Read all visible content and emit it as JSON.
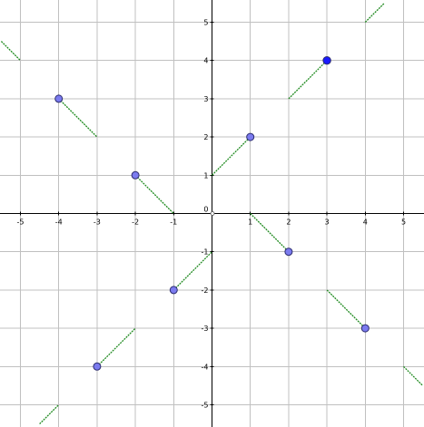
{
  "chart_data": {
    "type": "line",
    "title": "",
    "xlabel": "",
    "ylabel": "",
    "xlim": [
      -5.5,
      5.5
    ],
    "ylim": [
      -5.5,
      5.5
    ],
    "grid": true,
    "x_ticks": [
      -5,
      -4,
      -3,
      -2,
      -1,
      1,
      2,
      3,
      4,
      5
    ],
    "y_ticks": [
      -5,
      -4,
      -3,
      -2,
      -1,
      1,
      2,
      3,
      4,
      5
    ],
    "origin_label": "0",
    "colors": {
      "segment": "#1f8a1f",
      "point": "#7b7bef",
      "point_highlight": "#1a1aff",
      "grid": "#c0c0c0",
      "axis": "#000000"
    },
    "segments": [
      {
        "x": [
          -5.5,
          -5
        ],
        "y": [
          4.5,
          4
        ]
      },
      {
        "x": [
          -4,
          -3
        ],
        "y": [
          3,
          2
        ]
      },
      {
        "x": [
          -2,
          -1
        ],
        "y": [
          1,
          0
        ]
      },
      {
        "x": [
          0,
          1
        ],
        "y": [
          1,
          2
        ]
      },
      {
        "x": [
          1,
          2
        ],
        "y": [
          0,
          -1
        ]
      },
      {
        "x": [
          2,
          3
        ],
        "y": [
          3,
          4
        ]
      },
      {
        "x": [
          3,
          4
        ],
        "y": [
          -2,
          -3
        ]
      },
      {
        "x": [
          4,
          4.5
        ],
        "y": [
          5,
          5.5
        ]
      },
      {
        "x": [
          -1,
          0
        ],
        "y": [
          -2,
          -1
        ]
      },
      {
        "x": [
          -3,
          -2
        ],
        "y": [
          -4,
          -3
        ]
      },
      {
        "x": [
          -4.5,
          -4
        ],
        "y": [
          -5.5,
          -5
        ]
      },
      {
        "x": [
          5,
          5.5
        ],
        "y": [
          -4,
          -4.5
        ]
      }
    ],
    "points": [
      {
        "x": -4,
        "y": 3,
        "highlight": false
      },
      {
        "x": -2,
        "y": 1,
        "highlight": false
      },
      {
        "x": 1,
        "y": 2,
        "highlight": false
      },
      {
        "x": 3,
        "y": 4,
        "highlight": true
      },
      {
        "x": 2,
        "y": -1,
        "highlight": false
      },
      {
        "x": 4,
        "y": -3,
        "highlight": false
      },
      {
        "x": -1,
        "y": -2,
        "highlight": false
      },
      {
        "x": -3,
        "y": -4,
        "highlight": false
      }
    ]
  }
}
